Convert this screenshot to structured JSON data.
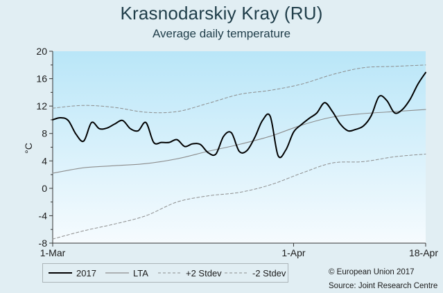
{
  "header": {
    "title": "Krasnodarskiy Kray (RU)",
    "subtitle": "Average daily temperature"
  },
  "credits": {
    "copyright": "© European Union 2017",
    "source": "Source: Joint Research Centre"
  },
  "colors": {
    "background": "#e1eef3",
    "band_top": "#b9e6f8",
    "band_bottom": "#f6fbfe",
    "line_2017": "#000000",
    "line_lta": "#8c8c8c",
    "line_stdev": "#8c8c8c"
  },
  "chart_data": {
    "type": "line",
    "title": "Krasnodarskiy Kray (RU)",
    "subtitle": "Average daily temperature",
    "ylabel": "°C",
    "xlabel": "",
    "ylim": [
      -8,
      20
    ],
    "yticks": [
      -8,
      -4,
      0,
      4,
      8,
      12,
      16,
      20
    ],
    "xlim": [
      "2017-03-01",
      "2017-04-18"
    ],
    "xticks": [
      {
        "date": "2017-03-01",
        "label": "1-Mar"
      },
      {
        "date": "2017-04-01",
        "label": "1-Apr"
      },
      {
        "date": "2017-04-18",
        "label": "18-Apr"
      }
    ],
    "grid": false,
    "legend_position": "bottom-left",
    "legend": [
      "2017",
      "LTA",
      "+2 Stdev",
      "-2 Stdev"
    ],
    "series": [
      {
        "name": "2017",
        "style": "solid-thick",
        "x": [
          "2017-03-01",
          "2017-03-02",
          "2017-03-03",
          "2017-03-04",
          "2017-03-05",
          "2017-03-06",
          "2017-03-07",
          "2017-03-08",
          "2017-03-09",
          "2017-03-10",
          "2017-03-11",
          "2017-03-12",
          "2017-03-13",
          "2017-03-14",
          "2017-03-15",
          "2017-03-16",
          "2017-03-17",
          "2017-03-18",
          "2017-03-19",
          "2017-03-20",
          "2017-03-21",
          "2017-03-22",
          "2017-03-23",
          "2017-03-24",
          "2017-03-25",
          "2017-03-26",
          "2017-03-27",
          "2017-03-28",
          "2017-03-29",
          "2017-03-30",
          "2017-03-31",
          "2017-04-01",
          "2017-04-02",
          "2017-04-03",
          "2017-04-04",
          "2017-04-05",
          "2017-04-06",
          "2017-04-07",
          "2017-04-08",
          "2017-04-09",
          "2017-04-10",
          "2017-04-11",
          "2017-04-12",
          "2017-04-13",
          "2017-04-14",
          "2017-04-15",
          "2017-04-16",
          "2017-04-17",
          "2017-04-18"
        ],
        "values": [
          10.0,
          10.3,
          9.9,
          7.9,
          6.9,
          9.6,
          8.7,
          8.8,
          9.4,
          9.9,
          8.7,
          8.4,
          9.6,
          6.7,
          6.7,
          6.7,
          7.1,
          6.1,
          6.5,
          6.4,
          5.2,
          5.0,
          7.6,
          8.1,
          5.4,
          5.5,
          7.4,
          9.9,
          10.5,
          4.8,
          5.6,
          8.2,
          9.3,
          10.2,
          11.0,
          12.5,
          11.2,
          9.4,
          8.4,
          8.6,
          9.1,
          10.6,
          13.4,
          12.8,
          11.0,
          11.5,
          13.0,
          15.2,
          16.9
        ]
      },
      {
        "name": "LTA",
        "style": "solid-thin",
        "x": [
          "2017-03-01",
          "2017-03-05",
          "2017-03-09",
          "2017-03-13",
          "2017-03-17",
          "2017-03-21",
          "2017-03-25",
          "2017-03-29",
          "2017-04-02",
          "2017-04-06",
          "2017-04-10",
          "2017-04-14",
          "2017-04-18"
        ],
        "values": [
          2.2,
          3.0,
          3.3,
          3.6,
          4.3,
          5.4,
          6.4,
          7.6,
          9.2,
          10.4,
          10.9,
          11.2,
          11.5
        ]
      },
      {
        "name": "+2 Stdev",
        "style": "dashed",
        "x": [
          "2017-03-01",
          "2017-03-05",
          "2017-03-09",
          "2017-03-13",
          "2017-03-17",
          "2017-03-21",
          "2017-03-25",
          "2017-03-29",
          "2017-04-02",
          "2017-04-06",
          "2017-04-10",
          "2017-04-14",
          "2017-04-18"
        ],
        "values": [
          11.7,
          12.1,
          11.8,
          11.1,
          11.2,
          12.4,
          13.7,
          14.3,
          15.2,
          16.6,
          17.6,
          17.8,
          18.0
        ]
      },
      {
        "name": "-2 Stdev",
        "style": "dashed",
        "x": [
          "2017-03-01",
          "2017-03-05",
          "2017-03-09",
          "2017-03-13",
          "2017-03-17",
          "2017-03-21",
          "2017-03-25",
          "2017-03-29",
          "2017-04-02",
          "2017-04-06",
          "2017-04-10",
          "2017-04-14",
          "2017-04-18"
        ],
        "values": [
          -7.4,
          -6.2,
          -5.2,
          -4.0,
          -2.0,
          -1.1,
          -0.6,
          0.5,
          2.2,
          3.7,
          3.9,
          4.6,
          5.0
        ]
      }
    ]
  }
}
